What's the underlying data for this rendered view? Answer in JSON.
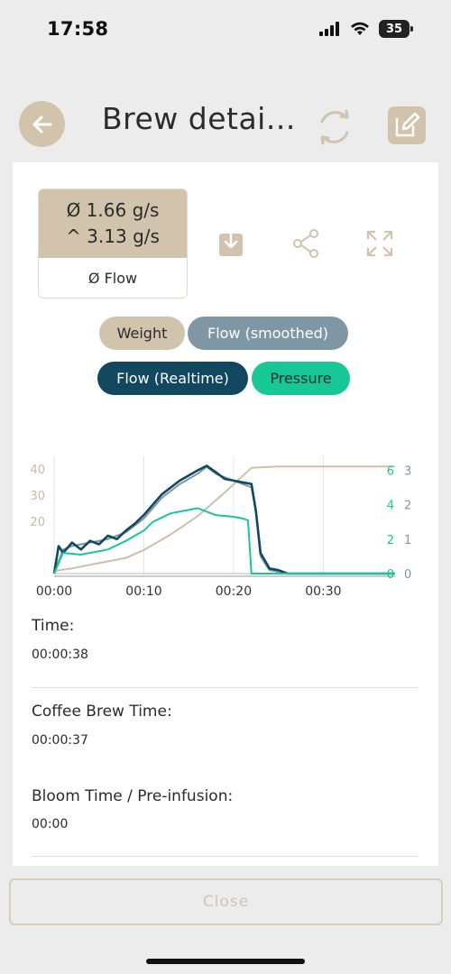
{
  "status_bar": {
    "time": "17:58",
    "battery": "35"
  },
  "header": {
    "title": "Brew detai..."
  },
  "stats": {
    "avg_flow": "Ø 1.66 g/s",
    "max_flow": "^ 3.13 g/s",
    "label": "Ø Flow"
  },
  "chips": {
    "weight": "Weight",
    "flow_smoothed": "Flow (smoothed)",
    "flow_realtime": "Flow (Realtime)",
    "pressure": "Pressure"
  },
  "colors": {
    "beige": "#d2c4ac",
    "slate": "#7f97a4",
    "navy": "#12485f",
    "green": "#17c795"
  },
  "chart_data": {
    "type": "line",
    "x_ticks": [
      "00:00",
      "00:10",
      "00:20",
      "00:30"
    ],
    "y_left_ticks": [
      "20",
      "30",
      "40"
    ],
    "y_pressure_ticks": [
      "0",
      "2",
      "4",
      "6"
    ],
    "y_flow_ticks": [
      "0",
      "1",
      "2",
      "3"
    ],
    "series": [
      {
        "name": "Weight",
        "color": "#cdbfa8",
        "axis": "left",
        "x": [
          0,
          2,
          5,
          8,
          10,
          13,
          16,
          19,
          22,
          25,
          38
        ],
        "y": [
          1,
          2,
          4,
          6,
          9,
          15,
          22,
          31,
          40.5,
          41,
          41
        ]
      },
      {
        "name": "Flow (smoothed)",
        "color": "#7f97a4",
        "axis": "flow",
        "x": [
          0,
          1,
          2,
          4,
          6,
          8,
          10,
          12,
          14,
          16,
          17,
          18,
          20,
          22,
          22.5,
          23,
          24,
          26,
          38
        ],
        "y": [
          0,
          0.7,
          0.8,
          0.9,
          1.0,
          1.2,
          1.6,
          2.2,
          2.6,
          2.9,
          3.1,
          2.9,
          2.7,
          2.5,
          1.8,
          0.5,
          0.1,
          0,
          0
        ]
      },
      {
        "name": "Flow (Realtime)",
        "color": "#12485f",
        "axis": "flow",
        "x": [
          0,
          0.5,
          1,
          2,
          3,
          4,
          5,
          6,
          7,
          8,
          9,
          10,
          11,
          12,
          13,
          14,
          15,
          16,
          17,
          18,
          19,
          20,
          21,
          22,
          22.5,
          23,
          24,
          25,
          26,
          38
        ],
        "y": [
          0,
          0.8,
          0.6,
          0.9,
          0.7,
          0.95,
          0.85,
          1.1,
          1.0,
          1.25,
          1.45,
          1.7,
          2.0,
          2.3,
          2.5,
          2.7,
          2.85,
          3.0,
          3.13,
          2.95,
          2.75,
          2.7,
          2.65,
          2.6,
          1.8,
          0.6,
          0.15,
          0.1,
          0,
          0
        ]
      },
      {
        "name": "Pressure",
        "color": "#17c795",
        "axis": "pressure",
        "x": [
          0,
          1,
          3,
          6,
          8,
          10,
          11,
          13,
          15,
          16,
          17,
          18,
          20,
          21,
          21.6,
          22,
          38
        ],
        "y": [
          0,
          1.2,
          1.1,
          1.4,
          1.9,
          2.5,
          3.0,
          3.5,
          3.7,
          3.8,
          3.6,
          3.4,
          3.3,
          3.2,
          3.1,
          0,
          0
        ]
      }
    ]
  },
  "details": [
    {
      "label": "Time:",
      "value": "00:00:38"
    },
    {
      "label": "Coffee Brew Time:",
      "value": "00:00:37"
    },
    {
      "label": "Bloom Time / Pre-infusion:",
      "value": "00:00"
    }
  ],
  "footer": {
    "close_label": "Close"
  }
}
